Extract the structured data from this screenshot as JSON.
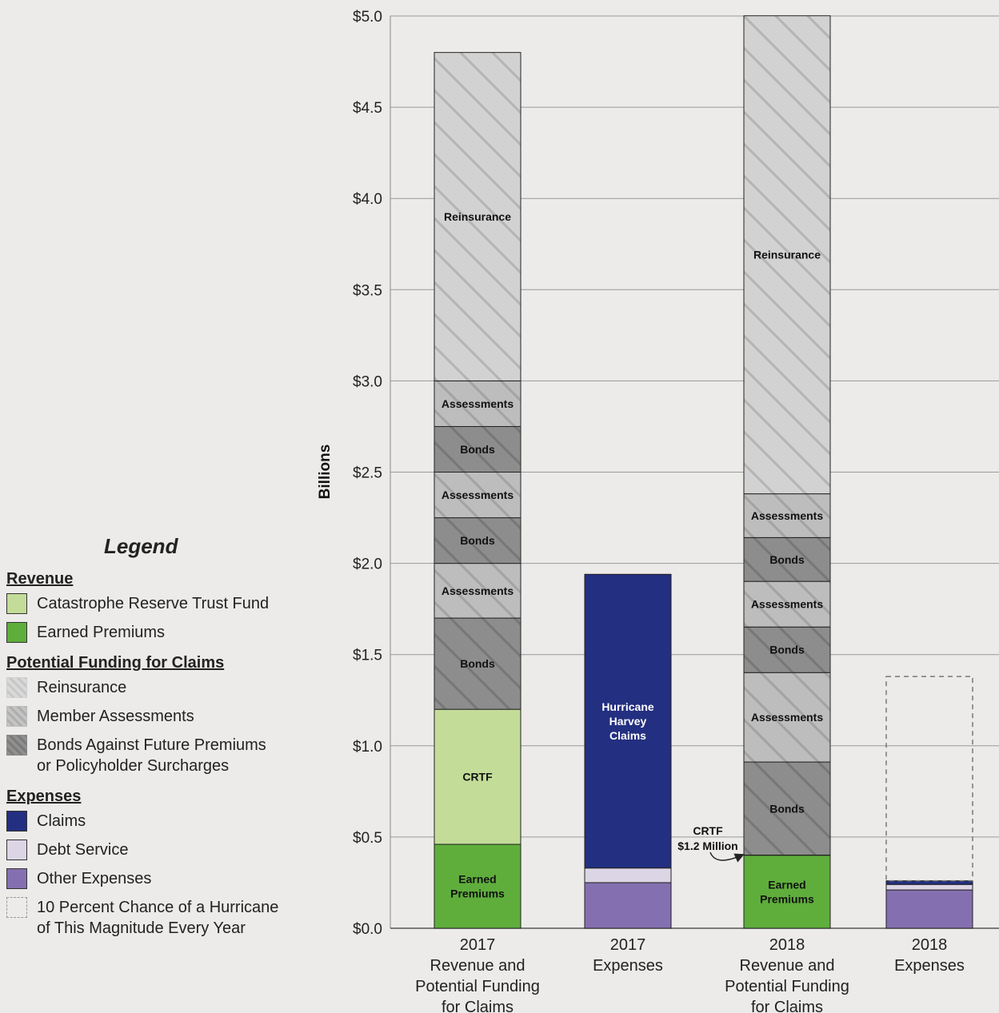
{
  "chart_data": {
    "type": "bar",
    "stacked": true,
    "ylabel": "Billions",
    "ylim": [
      0,
      5
    ],
    "yticks": [
      "$0.0",
      "$0.5",
      "$1.0",
      "$1.5",
      "$2.0",
      "$2.5",
      "$3.0",
      "$3.5",
      "$4.0",
      "$4.5",
      "$5.0"
    ],
    "grid": true,
    "categories": [
      [
        "2017",
        "Revenue and",
        "Potential Funding",
        "for Claims"
      ],
      [
        "2017",
        "Expenses"
      ],
      [
        "2018",
        "Revenue and",
        "Potential Funding",
        "for Claims"
      ],
      [
        "2018",
        "Expenses"
      ]
    ],
    "bars": [
      {
        "segments": [
          {
            "type": "earned",
            "value": 0.46,
            "label": [
              "Earned",
              "Premiums"
            ]
          },
          {
            "type": "crtf",
            "value": 0.74,
            "label": [
              "CRTF"
            ]
          },
          {
            "type": "bonds",
            "value": 0.5,
            "label": [
              "Bonds"
            ]
          },
          {
            "type": "assess",
            "value": 0.3,
            "label": [
              "Assessments"
            ]
          },
          {
            "type": "bonds",
            "value": 0.25,
            "label": [
              "Bonds"
            ]
          },
          {
            "type": "assess",
            "value": 0.25,
            "label": [
              "Assessments"
            ]
          },
          {
            "type": "bonds",
            "value": 0.25,
            "label": [
              "Bonds"
            ]
          },
          {
            "type": "assess",
            "value": 0.25,
            "label": [
              "Assessments"
            ]
          },
          {
            "type": "reins",
            "value": 1.8,
            "label": [
              "Reinsurance"
            ]
          }
        ]
      },
      {
        "segments": [
          {
            "type": "other",
            "value": 0.25,
            "label": []
          },
          {
            "type": "debt",
            "value": 0.08,
            "label": []
          },
          {
            "type": "claims",
            "value": 1.61,
            "label": [
              "Hurricane",
              "Harvey",
              "Claims"
            ]
          }
        ]
      },
      {
        "segments": [
          {
            "type": "earned",
            "value": 0.4,
            "label": [
              "Earned",
              "Premiums"
            ]
          },
          {
            "type": "crtf",
            "value": 0.0012,
            "label": []
          },
          {
            "type": "bonds",
            "value": 0.51,
            "label": [
              "Bonds"
            ]
          },
          {
            "type": "assess",
            "value": 0.49,
            "label": [
              "Assessments"
            ]
          },
          {
            "type": "bonds",
            "value": 0.25,
            "label": [
              "Bonds"
            ]
          },
          {
            "type": "assess",
            "value": 0.25,
            "label": [
              "Assessments"
            ]
          },
          {
            "type": "bonds",
            "value": 0.24,
            "label": [
              "Bonds"
            ]
          },
          {
            "type": "assess",
            "value": 0.24,
            "label": [
              "Assessments"
            ]
          },
          {
            "type": "reins",
            "value": 2.62,
            "label": [
              "Reinsurance"
            ]
          }
        ]
      },
      {
        "segments": [
          {
            "type": "other",
            "value": 0.21,
            "label": []
          },
          {
            "type": "debt",
            "value": 0.03,
            "label": []
          },
          {
            "type": "claims",
            "value": 0.02,
            "label": []
          }
        ],
        "dashed_total": 1.38
      }
    ],
    "annotation": {
      "lines": [
        "CRTF",
        "$1.2 Million"
      ],
      "bar_index": 2,
      "value": 0.41
    }
  },
  "colors": {
    "earned": "#5fae3c",
    "crtf": "#c3dc98",
    "bonds": "#8a8a8a",
    "assess": "#bdbdbd",
    "reins": "#d1d1d1",
    "claims": "#232f80",
    "debt": "#dcd5e5",
    "other": "#8470b0",
    "grid": "#9a9a9a"
  },
  "legend": {
    "title": "Legend",
    "revenue_heading": "Revenue",
    "crtf": "Catastrophe Reserve Trust Fund",
    "earned": "Earned Premiums",
    "funding_heading": "Potential Funding for Claims",
    "reins": "Reinsurance",
    "assess": "Member Assessments",
    "bonds_line1": "Bonds Against Future Premiums",
    "bonds_line2": "or Policyholder Surcharges",
    "expenses_heading": "Expenses",
    "claims": "Claims",
    "debt": "Debt Service",
    "other": "Other Expenses",
    "dashed_line1": "10 Percent Chance of a Hurricane",
    "dashed_line2": "of This Magnitude Every Year"
  }
}
